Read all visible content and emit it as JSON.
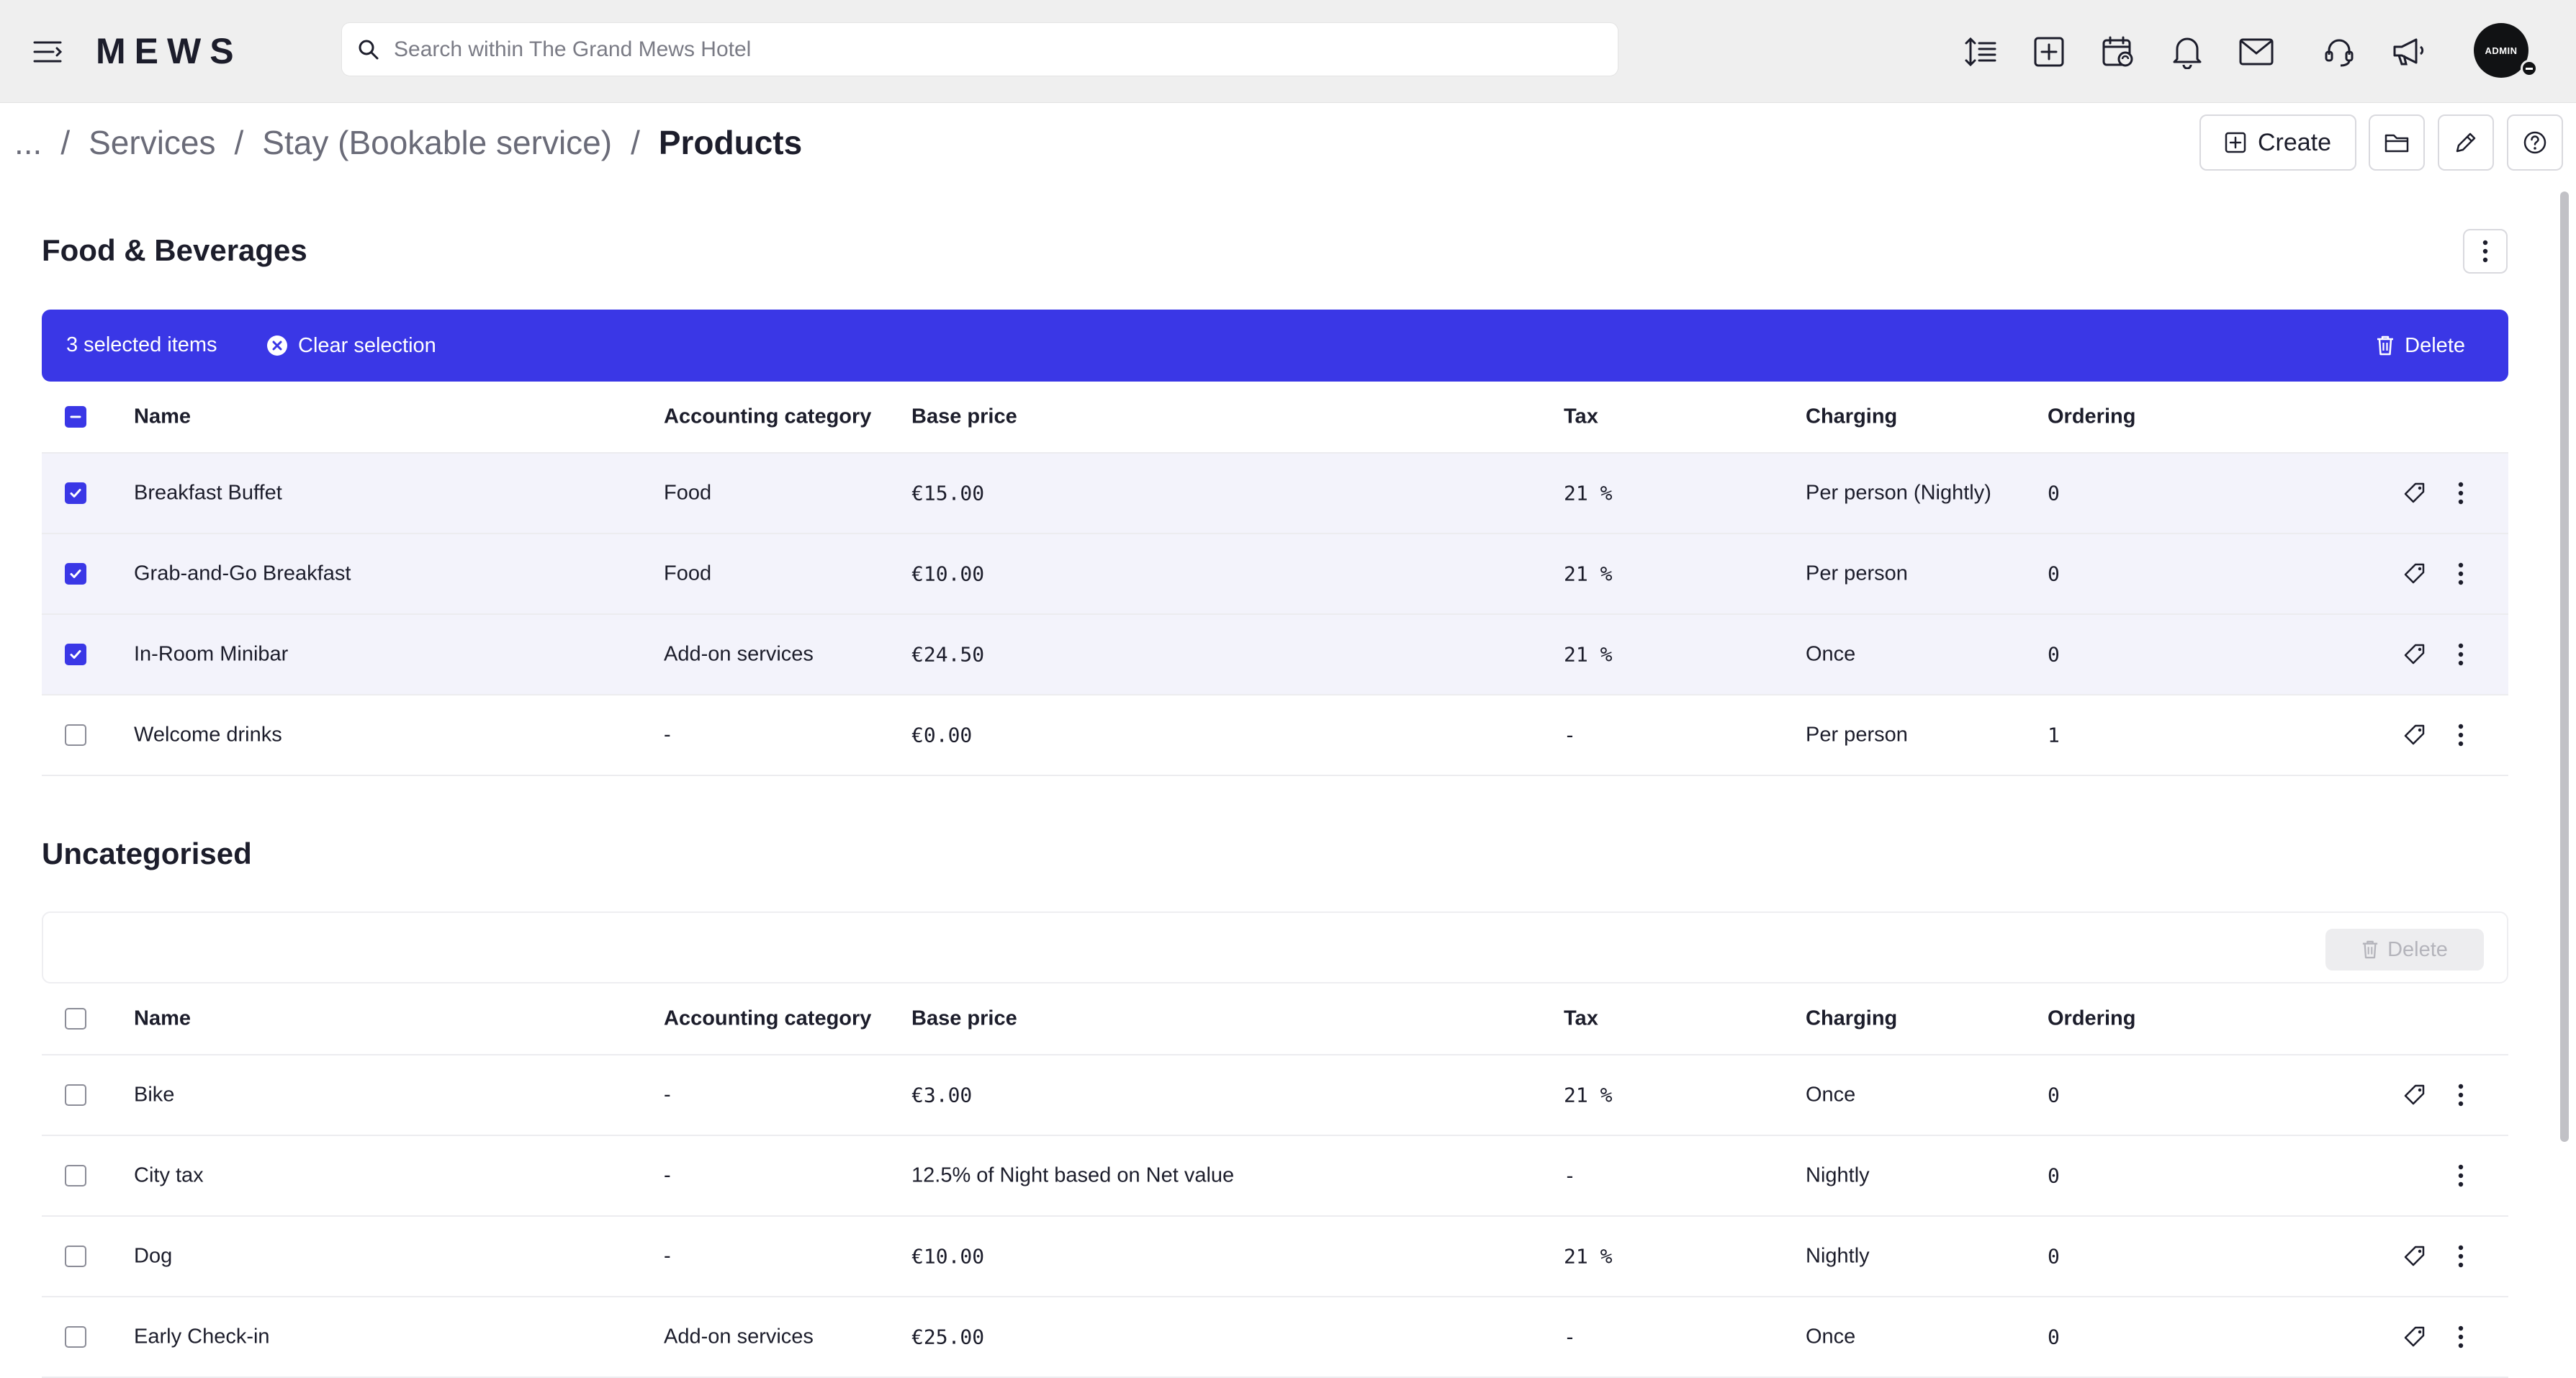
{
  "app": {
    "logo": "MEWS",
    "search_placeholder": "Search within The Grand Mews Hotel",
    "top_icons": [
      "sort-lines-icon",
      "add-box-icon",
      "calendar-sync-icon",
      "bell-icon",
      "mail-icon",
      "headset-support-icon",
      "megaphone-icon"
    ],
    "avatar_label": "ADMIN"
  },
  "breadcrumb": {
    "ellipsis": "...",
    "separator": "/",
    "items": [
      "Services",
      "Stay (Bookable service)"
    ],
    "current": "Products"
  },
  "header_actions": {
    "create_label": "Create",
    "icons": [
      "folder-icon",
      "pencil-icon",
      "help-icon"
    ]
  },
  "columns": {
    "name": "Name",
    "accounting_category": "Accounting category",
    "base_price": "Base price",
    "tax": "Tax",
    "charging": "Charging",
    "ordering": "Ordering"
  },
  "sections": [
    {
      "title": "Food & Beverages",
      "selection": {
        "count_text": "3 selected items",
        "clear_label": "Clear selection",
        "delete_label": "Delete"
      },
      "rows": [
        {
          "selected": true,
          "name": "Breakfast Buffet",
          "accounting_category": "Food",
          "base_price": "€15.00",
          "tax": "21 %",
          "charging": "Per person (Nightly)",
          "ordering": "0",
          "has_tag_action": true
        },
        {
          "selected": true,
          "name": "Grab-and-Go Breakfast",
          "accounting_category": "Food",
          "base_price": "€10.00",
          "tax": "21 %",
          "charging": "Per person",
          "ordering": "0",
          "has_tag_action": true
        },
        {
          "selected": true,
          "name": "In-Room Minibar",
          "accounting_category": "Add-on services",
          "base_price": "€24.50",
          "tax": "21 %",
          "charging": "Once",
          "ordering": "0",
          "has_tag_action": true
        },
        {
          "selected": false,
          "name": "Welcome drinks",
          "accounting_category": "-",
          "base_price": "€0.00",
          "tax": "-",
          "charging": "Per person",
          "ordering": "1",
          "has_tag_action": true
        }
      ]
    },
    {
      "title": "Uncategorised",
      "selection": {
        "delete_label": "Delete"
      },
      "rows": [
        {
          "selected": false,
          "name": "Bike",
          "accounting_category": "-",
          "base_price": "€3.00",
          "tax": "21 %",
          "charging": "Once",
          "ordering": "0",
          "has_tag_action": true
        },
        {
          "selected": false,
          "name": "City tax",
          "accounting_category": "-",
          "base_price": "12.5% of Night based on Net value",
          "tax": "-",
          "charging": "Nightly",
          "ordering": "0",
          "has_tag_action": false
        },
        {
          "selected": false,
          "name": "Dog",
          "accounting_category": "-",
          "base_price": "€10.00",
          "tax": "21 %",
          "charging": "Nightly",
          "ordering": "0",
          "has_tag_action": true
        },
        {
          "selected": false,
          "name": "Early Check-in",
          "accounting_category": "Add-on services",
          "base_price": "€25.00",
          "tax": "-",
          "charging": "Once",
          "ordering": "0",
          "has_tag_action": true
        }
      ]
    }
  ],
  "colors": {
    "accent": "#3a37e6",
    "topbar": "#efefef",
    "selected_row": "#f3f3fb"
  }
}
